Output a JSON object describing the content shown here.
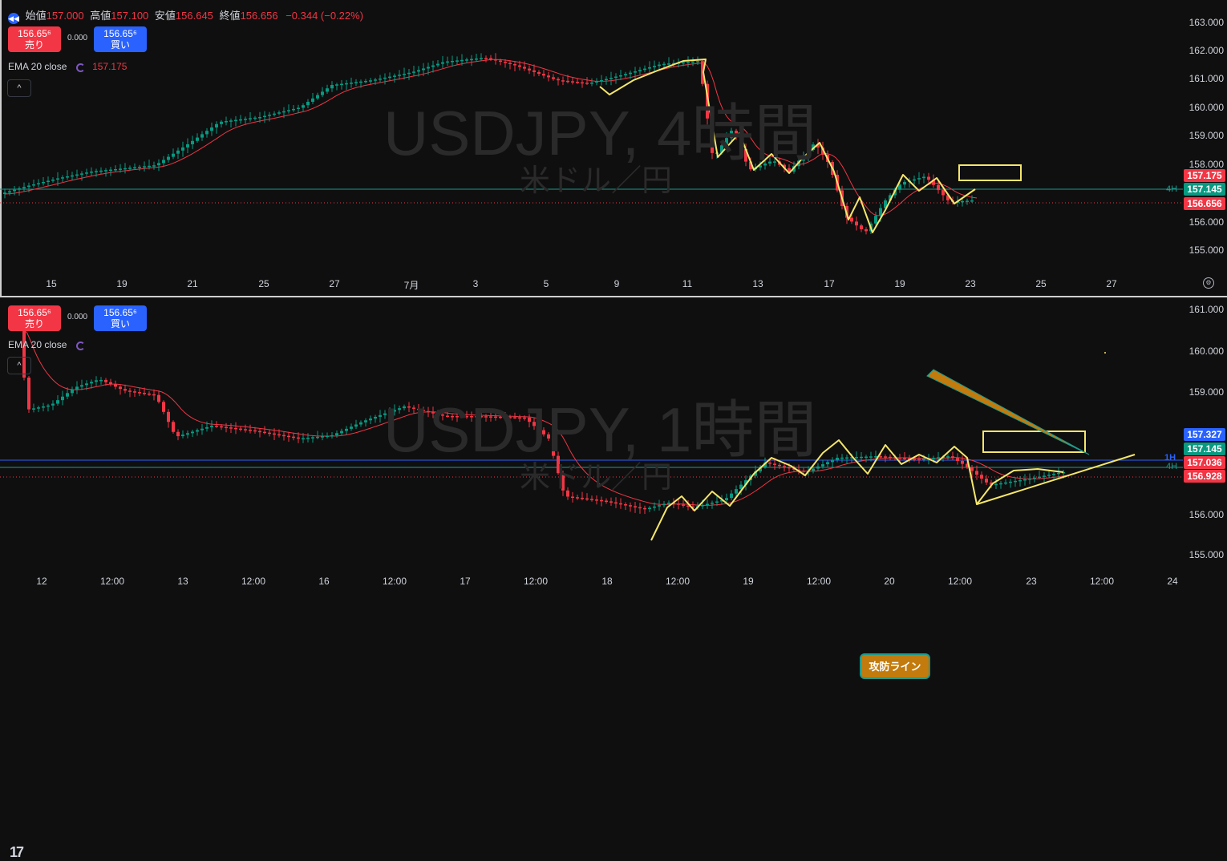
{
  "legend": {
    "open_label": "始値",
    "open": "157.000",
    "high_label": "高値",
    "high": "157.100",
    "low_label": "安値",
    "low": "156.645",
    "close_label": "終値",
    "close": "156.656",
    "change": "−0.344 (−0.22%)"
  },
  "top": {
    "sell_price": "156.65⁶",
    "sell_label": "売り",
    "spread": "0.000",
    "buy_price": "156.65⁶",
    "buy_label": "買い",
    "ema_label": "EMA 20 close",
    "ema_value": "157.175",
    "collapse": "^",
    "watermark_title": "USDJPY, 4時間",
    "watermark_sub": "米ドル／円",
    "y_labels": [
      "163.000",
      "162.000",
      "161.000",
      "160.000",
      "159.000",
      "158.000",
      "156.000",
      "155.000"
    ],
    "tags": [
      {
        "text": "157.175",
        "color": "#f23645"
      },
      {
        "text": "157.145",
        "color": "#089981"
      },
      {
        "text": "156.656",
        "color": "#f23645"
      }
    ],
    "tf_label": "4H",
    "x_labels": [
      "15",
      "19",
      "21",
      "25",
      "27",
      "7月",
      "3",
      "5",
      "9",
      "11",
      "13",
      "17",
      "19",
      "23",
      "25",
      "27"
    ],
    "gear": "⚙"
  },
  "bottom": {
    "sell_price": "156.65⁶",
    "sell_label": "売り",
    "spread": "0.000",
    "buy_price": "156.65⁶",
    "buy_label": "買い",
    "ema_label": "EMA 20 close",
    "collapse": "^",
    "watermark_title": "USDJPY, 1時間",
    "watermark_sub": "米ドル／円",
    "y_labels": [
      "161.000",
      "160.000",
      "159.000",
      "156.000",
      "155.000"
    ],
    "tags": [
      {
        "text": "157.327",
        "color": "#2962ff"
      },
      {
        "text": "157.145",
        "color": "#089981"
      },
      {
        "text": "157.036",
        "color": "#f23645"
      },
      {
        "text": "156.928",
        "color": "#f23645"
      }
    ],
    "tf_label_1": "1H",
    "tf_label_2": "4H",
    "callout": "攻防ライン",
    "x_labels": [
      "12",
      "12:00",
      "13",
      "12:00",
      "16",
      "12:00",
      "17",
      "12:00",
      "18",
      "12:00",
      "19",
      "12:00",
      "20",
      "12:00",
      "23",
      "12:00",
      "24"
    ],
    "logo": "17"
  },
  "colors": {
    "up": "#089981",
    "down": "#f23645",
    "ema": "#f23645",
    "drawing": "#f5e66b",
    "teal_line": "#1d9a8e",
    "blue_line": "#2962ff"
  }
}
